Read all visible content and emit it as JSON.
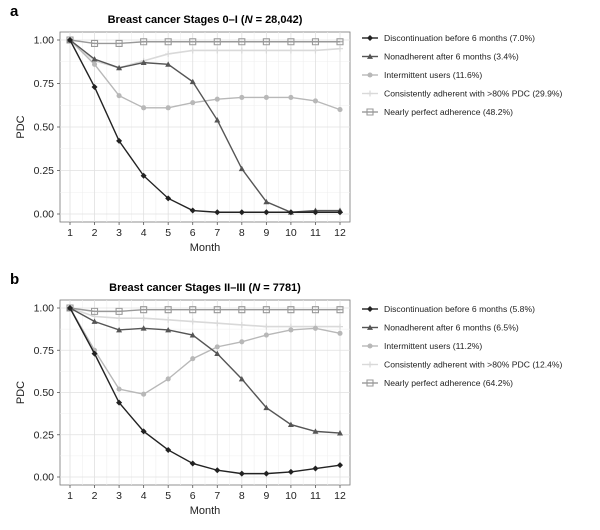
{
  "chart_data": [
    {
      "panel_label": "a",
      "type": "line",
      "title": "Breast cancer Stages 0–I (N = 28,042)",
      "title_parts": [
        "Breast cancer Stages 0–I (",
        "N",
        " = 28,042)"
      ],
      "xlabel": "Month",
      "ylabel": "PDC",
      "x": [
        1,
        2,
        3,
        4,
        5,
        6,
        7,
        8,
        9,
        10,
        11,
        12
      ],
      "xlim": [
        1,
        12
      ],
      "ylim": [
        0,
        1
      ],
      "yticks": [
        "0.00",
        "0.25",
        "0.50",
        "0.75",
        "1.00"
      ],
      "yticks_values": [
        0,
        0.25,
        0.5,
        0.75,
        1
      ],
      "grid": true,
      "legend_position": "right",
      "series": [
        {
          "name": "Discontinuation before 6 months (7.0%)",
          "color": "#222222",
          "marker": "diamond",
          "values": [
            1.0,
            0.73,
            0.42,
            0.22,
            0.09,
            0.02,
            0.01,
            0.01,
            0.01,
            0.01,
            0.01,
            0.01
          ]
        },
        {
          "name": "Nonadherent after 6 months (3.4%)",
          "color": "#555555",
          "marker": "triangle",
          "values": [
            1.0,
            0.89,
            0.84,
            0.87,
            0.86,
            0.76,
            0.54,
            0.26,
            0.07,
            0.01,
            0.02,
            0.02
          ]
        },
        {
          "name": "Intermittent users (11.6%)",
          "color": "#b8b8b8",
          "marker": "circle",
          "values": [
            1.0,
            0.86,
            0.68,
            0.61,
            0.61,
            0.64,
            0.66,
            0.67,
            0.67,
            0.67,
            0.65,
            0.6
          ]
        },
        {
          "name": "Consistently adherent with >80% PDC (29.9%)",
          "color": "#d9d9d9",
          "marker": "plus",
          "values": [
            1.0,
            0.88,
            0.84,
            0.88,
            0.92,
            0.94,
            0.94,
            0.94,
            0.94,
            0.94,
            0.94,
            0.95
          ]
        },
        {
          "name": "Nearly perfect adherence (48.2%)",
          "color": "#999999",
          "marker": "boxminus",
          "values": [
            1.0,
            0.98,
            0.98,
            0.99,
            0.99,
            0.99,
            0.99,
            0.99,
            0.99,
            0.99,
            0.99,
            0.99
          ]
        }
      ]
    },
    {
      "panel_label": "b",
      "type": "line",
      "title": "Breast cancer Stages II–III (N = 7781)",
      "title_parts": [
        "Breast cancer Stages II–III (",
        "N",
        " = 7781)"
      ],
      "xlabel": "Month",
      "ylabel": "PDC",
      "x": [
        1,
        2,
        3,
        4,
        5,
        6,
        7,
        8,
        9,
        10,
        11,
        12
      ],
      "xlim": [
        1,
        12
      ],
      "ylim": [
        0,
        1
      ],
      "yticks": [
        "0.00",
        "0.25",
        "0.50",
        "0.75",
        "1.00"
      ],
      "yticks_values": [
        0,
        0.25,
        0.5,
        0.75,
        1
      ],
      "grid": true,
      "legend_position": "right",
      "series": [
        {
          "name": "Discontinuation before 6 months (5.8%)",
          "color": "#222222",
          "marker": "diamond",
          "values": [
            1.0,
            0.73,
            0.44,
            0.27,
            0.16,
            0.08,
            0.04,
            0.02,
            0.02,
            0.03,
            0.05,
            0.07
          ]
        },
        {
          "name": "Nonadherent after 6 months (6.5%)",
          "color": "#555555",
          "marker": "triangle",
          "values": [
            1.0,
            0.92,
            0.87,
            0.88,
            0.87,
            0.84,
            0.73,
            0.58,
            0.41,
            0.31,
            0.27,
            0.26
          ]
        },
        {
          "name": "Intermittent users (11.2%)",
          "color": "#b8b8b8",
          "marker": "circle",
          "values": [
            1.0,
            0.75,
            0.52,
            0.49,
            0.58,
            0.7,
            0.77,
            0.8,
            0.84,
            0.87,
            0.88,
            0.85
          ]
        },
        {
          "name": "Consistently adherent with >80% PDC (12.4%)",
          "color": "#d9d9d9",
          "marker": "plus",
          "values": [
            1.0,
            0.95,
            0.94,
            0.94,
            0.93,
            0.92,
            0.91,
            0.9,
            0.89,
            0.89,
            0.89,
            0.89
          ]
        },
        {
          "name": "Nearly perfect adherence (64.2%)",
          "color": "#999999",
          "marker": "boxminus",
          "values": [
            1.0,
            0.98,
            0.98,
            0.99,
            0.99,
            0.99,
            0.99,
            0.99,
            0.99,
            0.99,
            0.99,
            0.99
          ]
        }
      ]
    }
  ]
}
